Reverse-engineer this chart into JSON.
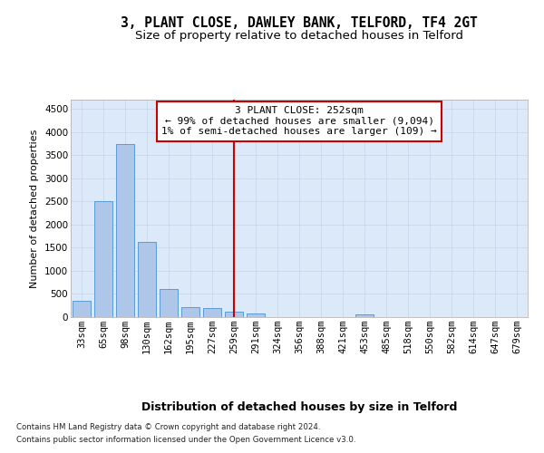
{
  "title": "3, PLANT CLOSE, DAWLEY BANK, TELFORD, TF4 2GT",
  "subtitle": "Size of property relative to detached houses in Telford",
  "xlabel": "Distribution of detached houses by size in Telford",
  "ylabel": "Number of detached properties",
  "categories": [
    "33sqm",
    "65sqm",
    "98sqm",
    "130sqm",
    "162sqm",
    "195sqm",
    "227sqm",
    "259sqm",
    "291sqm",
    "324sqm",
    "356sqm",
    "388sqm",
    "421sqm",
    "453sqm",
    "485sqm",
    "518sqm",
    "550sqm",
    "582sqm",
    "614sqm",
    "647sqm",
    "679sqm"
  ],
  "values": [
    350,
    2500,
    3750,
    1625,
    600,
    225,
    200,
    120,
    80,
    0,
    0,
    0,
    0,
    50,
    0,
    0,
    0,
    0,
    0,
    0,
    0
  ],
  "bar_color": "#aec6e8",
  "bar_edge_color": "#5b9bd5",
  "vline_x_index": 7,
  "vline_color": "#cc0000",
  "annotation_text": "3 PLANT CLOSE: 252sqm\n← 99% of detached houses are smaller (9,094)\n1% of semi-detached houses are larger (109) →",
  "annotation_box_color": "#ffffff",
  "annotation_box_edge": "#cc0000",
  "ylim": [
    0,
    4700
  ],
  "yticks": [
    0,
    500,
    1000,
    1500,
    2000,
    2500,
    3000,
    3500,
    4000,
    4500
  ],
  "grid_color": "#c8d8ec",
  "background_color": "#dce9f8",
  "footer_line1": "Contains HM Land Registry data © Crown copyright and database right 2024.",
  "footer_line2": "Contains public sector information licensed under the Open Government Licence v3.0.",
  "title_fontsize": 10.5,
  "subtitle_fontsize": 9.5,
  "xlabel_fontsize": 9,
  "ylabel_fontsize": 8,
  "tick_fontsize": 7.5,
  "annotation_fontsize": 8
}
